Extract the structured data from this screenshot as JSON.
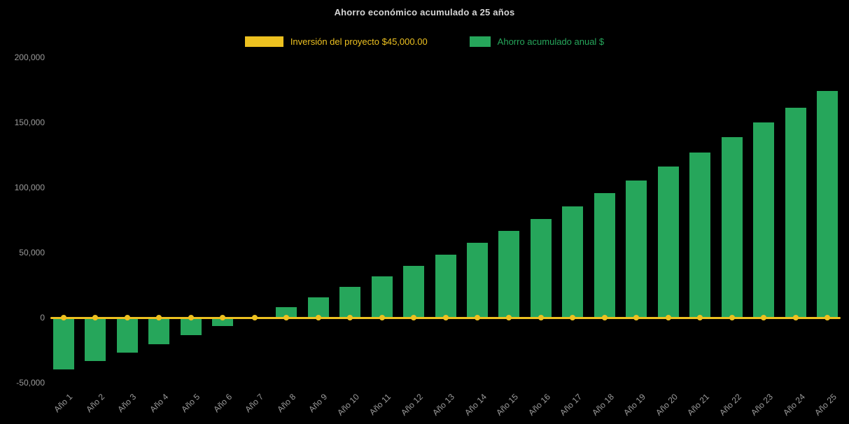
{
  "page": {
    "background": "#000000"
  },
  "chart_data": {
    "type": "bar",
    "title": "Ahorro económico acumulado a 25 años",
    "categories": [
      "Año 1",
      "Año 2",
      "Año 3",
      "Año 4",
      "Año 5",
      "Año 6",
      "Año 7",
      "Año 8",
      "Año 9",
      "Año 10",
      "Año 11",
      "Año 12",
      "Año 13",
      "Año 14",
      "Año 15",
      "Año 16",
      "Año 17",
      "Año 18",
      "Año 19",
      "Año 20",
      "Año 21",
      "Año 22",
      "Año 23",
      "Año 24",
      "Año 25"
    ],
    "series": [
      {
        "name": "Inversión del proyecto $45,000.00",
        "type": "line",
        "color": "#edc120",
        "marker": "circle",
        "values": [
          0,
          0,
          0,
          0,
          0,
          0,
          0,
          0,
          0,
          0,
          0,
          0,
          0,
          0,
          0,
          0,
          0,
          0,
          0,
          0,
          0,
          0,
          0,
          0,
          0
        ]
      },
      {
        "name": "Ahorro acumulado anual $",
        "type": "bar",
        "color": "#26a65b",
        "values": [
          -40000,
          -33500,
          -27000,
          -20500,
          -13500,
          -6500,
          500,
          8000,
          15500,
          23500,
          31500,
          40000,
          48500,
          57500,
          66500,
          76000,
          85500,
          95500,
          105500,
          116000,
          127000,
          138500,
          150000,
          161500,
          174000
        ]
      }
    ],
    "ylim": [
      -50000,
      200000
    ],
    "yticks": [
      -50000,
      0,
      50000,
      100000,
      150000,
      200000
    ],
    "grid": false,
    "legend_position": "top",
    "xlabel": "",
    "ylabel": "",
    "text_color": "#9b9b9b",
    "title_color": "#d6d6d6",
    "background": "#000000"
  }
}
